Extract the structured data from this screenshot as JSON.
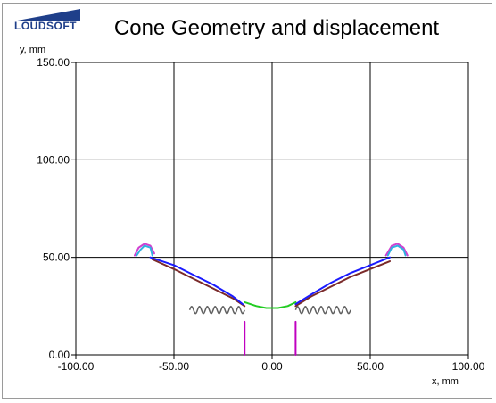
{
  "logo": {
    "text": "LOUDSOFT"
  },
  "chart_data": {
    "type": "line",
    "title": "Cone Geometry and displacement",
    "xlabel": "x, mm",
    "ylabel": "y, mm",
    "xlim": [
      -100,
      100
    ],
    "ylim": [
      0,
      150
    ],
    "x_ticks": [
      "-100.00",
      "-50.00",
      "0.00",
      "50.00",
      "100.00"
    ],
    "y_ticks": [
      "0.00",
      "50.00",
      "100.00",
      "150.00"
    ],
    "x_tick_values": [
      -100,
      -50,
      0,
      50,
      100
    ],
    "y_tick_values": [
      0,
      50,
      100,
      150
    ],
    "grid": true,
    "series": [
      {
        "color": "#c000c0",
        "points": [
          [
            -14,
            17
          ],
          [
            -14,
            0
          ]
        ]
      },
      {
        "color": "#c000c0",
        "points": [
          [
            12,
            17
          ],
          [
            12,
            0
          ]
        ]
      },
      {
        "color": "#7a2a2a",
        "points": [
          [
            -61,
            49
          ],
          [
            -50,
            44
          ],
          [
            -40,
            39
          ],
          [
            -30,
            34
          ],
          [
            -20,
            29
          ],
          [
            -14,
            25
          ]
        ]
      },
      {
        "color": "#7a2a2a",
        "points": [
          [
            12,
            25
          ],
          [
            20,
            30
          ],
          [
            30,
            35
          ],
          [
            40,
            40
          ],
          [
            50,
            44
          ],
          [
            60,
            48
          ]
        ]
      },
      {
        "color": "#1a1aff",
        "points": [
          [
            -62,
            50
          ],
          [
            -50,
            46
          ],
          [
            -40,
            41
          ],
          [
            -30,
            36
          ],
          [
            -20,
            30
          ],
          [
            -15,
            26
          ]
        ]
      },
      {
        "color": "#1a1aff",
        "points": [
          [
            12,
            26
          ],
          [
            20,
            31
          ],
          [
            30,
            37
          ],
          [
            40,
            42
          ],
          [
            50,
            46
          ],
          [
            60,
            50
          ]
        ]
      },
      {
        "color": "#22cc22",
        "points": [
          [
            -14,
            27
          ],
          [
            -8,
            25
          ],
          [
            -3,
            24
          ],
          [
            3,
            24
          ],
          [
            8,
            25
          ],
          [
            12,
            27
          ]
        ]
      },
      {
        "color": "#d040d0",
        "points": [
          [
            -70,
            51
          ],
          [
            -68,
            55
          ],
          [
            -65,
            57
          ],
          [
            -62,
            56
          ],
          [
            -60,
            52
          ]
        ]
      },
      {
        "color": "#30b0e0",
        "points": [
          [
            -69,
            51
          ],
          [
            -67,
            54
          ],
          [
            -65,
            56
          ],
          [
            -62,
            55
          ],
          [
            -61,
            51
          ]
        ]
      },
      {
        "color": "#d040d0",
        "points": [
          [
            58,
            51
          ],
          [
            61,
            56
          ],
          [
            64,
            57
          ],
          [
            67,
            55
          ],
          [
            69,
            51
          ]
        ]
      },
      {
        "color": "#30b0e0",
        "points": [
          [
            59,
            51
          ],
          [
            61,
            55
          ],
          [
            64,
            56
          ],
          [
            67,
            54
          ],
          [
            68,
            51
          ]
        ]
      }
    ],
    "suspension": {
      "color": "#606060",
      "left": [
        -42,
        -14
      ],
      "right": [
        12,
        40
      ],
      "y": 23,
      "amplitude": 1.8,
      "waves": 7
    }
  }
}
